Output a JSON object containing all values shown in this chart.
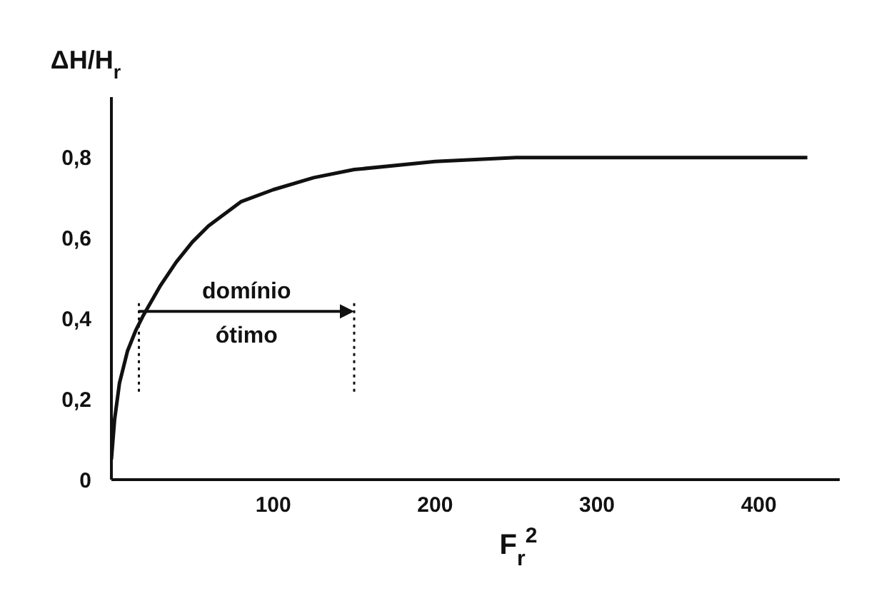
{
  "chart_data": {
    "type": "line",
    "xlabel": "F$_{r}$$^{2}$",
    "ylabel": "ΔH/H$_{r}$",
    "x": [
      0,
      2,
      5,
      10,
      15,
      20,
      30,
      40,
      50,
      60,
      80,
      100,
      125,
      150,
      200,
      250,
      300,
      350,
      400,
      430
    ],
    "series": [
      {
        "color": "#111111",
        "values": [
          0.05,
          0.15,
          0.24,
          0.32,
          0.37,
          0.41,
          0.48,
          0.54,
          0.59,
          0.63,
          0.69,
          0.72,
          0.75,
          0.77,
          0.79,
          0.8,
          0.8,
          0.8,
          0.8,
          0.8
        ]
      }
    ],
    "xlim": [
      0,
      450
    ],
    "xticks": [
      100,
      200,
      300,
      400
    ],
    "ylim": [
      0,
      0.95
    ],
    "yticks": [
      {
        "value": 0,
        "label": "0"
      },
      {
        "value": 0.2,
        "label": "0,2"
      },
      {
        "value": 0.4,
        "label": "0,4"
      },
      {
        "value": 0.6,
        "label": "0,6"
      },
      {
        "value": 0.8,
        "label": "0,8"
      }
    ],
    "ref_lines": [
      {
        "axis": "x",
        "value": 17,
        "line_style": "dotted"
      },
      {
        "axis": "x",
        "value": 150,
        "line_style": "dotted"
      }
    ],
    "annotations": [
      "domínio",
      "ótimo"
    ],
    "grid": false,
    "legend": false,
    "marker": "none",
    "line_style": "solid"
  }
}
